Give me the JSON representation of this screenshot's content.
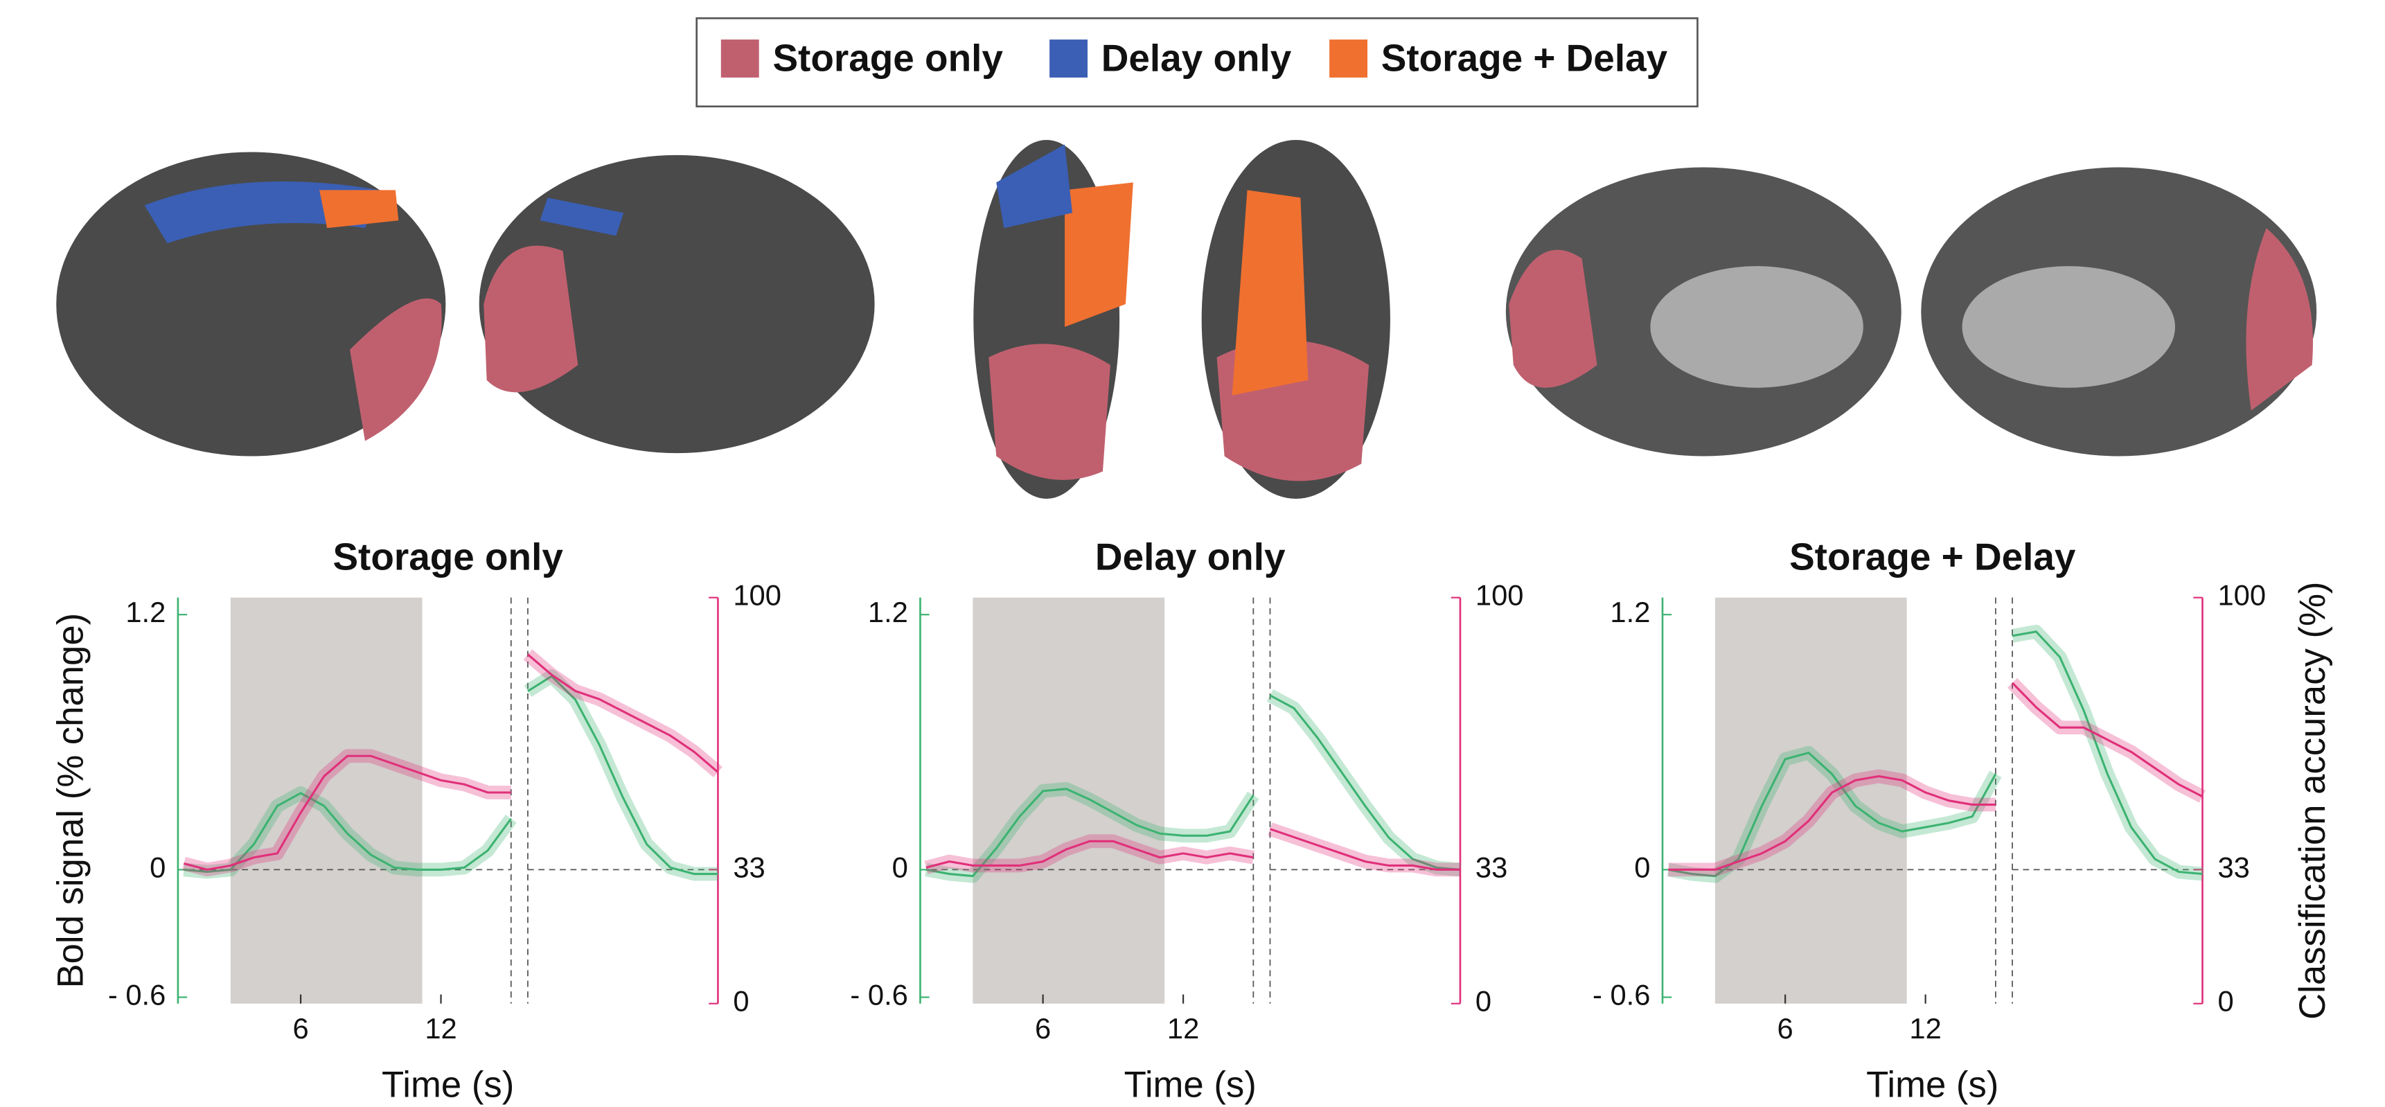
{
  "legend": {
    "entries": [
      {
        "label": "Storage only",
        "color": "#c0606f"
      },
      {
        "label": "Delay only",
        "color": "#3a5fb5"
      },
      {
        "label": "Storage + Delay",
        "color": "#f07030"
      }
    ]
  },
  "chart_data": [
    {
      "type": "line",
      "title": "Storage only",
      "xlabel": "Time (s)",
      "ylabel": "Bold signal (% change)",
      "x": [
        1,
        2,
        3,
        4,
        5,
        6,
        7,
        8,
        9,
        10,
        11,
        12,
        13,
        14,
        15
      ],
      "xlim": [
        0.75,
        15
      ],
      "xticks": [
        6,
        12
      ],
      "ylim": [
        -0.63,
        1.28
      ],
      "yticks": [
        {
          "value": -0.6,
          "label": "- 0.6"
        },
        0,
        1.2
      ],
      "y2lim": [
        0,
        100
      ],
      "y2ticks": [
        0,
        33,
        100
      ],
      "delay_period": [
        3,
        11.2
      ],
      "series": [
        {
          "color": "#3cb371",
          "values": [
            0,
            -0.01,
            0,
            0.12,
            0.3,
            0.36,
            0.3,
            0.17,
            0.07,
            0.01,
            0,
            0,
            0.01,
            0.09,
            0.24
          ]
        },
        {
          "color": "#e0307a",
          "axis": "y2",
          "values": [
            34.5,
            33,
            34,
            36,
            37,
            47,
            56,
            61,
            61,
            59,
            57,
            55,
            54,
            52,
            52
          ]
        }
      ],
      "late": {
        "x": [
          1,
          2,
          3,
          4,
          5,
          6,
          7,
          8,
          9
        ],
        "xlim": [
          1,
          9
        ],
        "series": [
          {
            "color": "#3cb371",
            "values": [
              0.84,
              0.91,
              0.8,
              0.59,
              0.34,
              0.12,
              0.01,
              -0.02,
              -0.02
            ]
          },
          {
            "color": "#e0307a",
            "axis": "y2",
            "values": [
              86,
              81,
              77,
              75,
              72,
              69,
              66,
              62,
              57
            ]
          }
        ]
      }
    },
    {
      "type": "line",
      "title": "Delay only",
      "xlabel": "Time (s)",
      "x": [
        1,
        2,
        3,
        4,
        5,
        6,
        7,
        8,
        9,
        10,
        11,
        12,
        13,
        14,
        15
      ],
      "xlim": [
        0.75,
        15
      ],
      "xticks": [
        6,
        12
      ],
      "ylim": [
        -0.63,
        1.28
      ],
      "yticks": [
        {
          "value": -0.6,
          "label": "- 0.6"
        },
        0,
        1.2
      ],
      "y2lim": [
        0,
        100
      ],
      "y2ticks": [
        0,
        33,
        100
      ],
      "delay_period": [
        3,
        11.2
      ],
      "series": [
        {
          "color": "#3cb371",
          "values": [
            0,
            -0.02,
            -0.03,
            0.1,
            0.25,
            0.37,
            0.38,
            0.33,
            0.27,
            0.21,
            0.17,
            0.16,
            0.16,
            0.18,
            0.35
          ]
        },
        {
          "color": "#e0307a",
          "axis": "y2",
          "values": [
            33.5,
            35,
            34,
            34,
            34,
            35,
            38,
            40,
            40,
            38,
            36,
            37,
            36,
            37,
            36
          ]
        }
      ],
      "late": {
        "x": [
          1,
          2,
          3,
          4,
          5,
          6,
          7,
          8,
          9
        ],
        "xlim": [
          1,
          9
        ],
        "series": [
          {
            "color": "#3cb371",
            "values": [
              0.82,
              0.76,
              0.62,
              0.46,
              0.3,
              0.15,
              0.05,
              0.01,
              0
            ]
          },
          {
            "color": "#e0307a",
            "axis": "y2",
            "values": [
              43,
              41,
              39,
              37,
              35,
              34,
              34,
              33,
              33
            ]
          }
        ]
      }
    },
    {
      "type": "line",
      "title": "Storage + Delay",
      "xlabel": "Time (s)",
      "y2label": "Classification accuracy (%)",
      "x": [
        1,
        2,
        3,
        4,
        5,
        6,
        7,
        8,
        9,
        10,
        11,
        12,
        13,
        14,
        15
      ],
      "xlim": [
        0.75,
        15
      ],
      "xticks": [
        6,
        12
      ],
      "ylim": [
        -0.63,
        1.28
      ],
      "yticks": [
        {
          "value": -0.6,
          "label": "- 0.6"
        },
        0,
        1.2
      ],
      "y2lim": [
        0,
        100
      ],
      "y2ticks": [
        0,
        33,
        100
      ],
      "delay_period": [
        3,
        11.2
      ],
      "series": [
        {
          "color": "#3cb371",
          "values": [
            0,
            -0.02,
            -0.03,
            0.05,
            0.3,
            0.52,
            0.55,
            0.45,
            0.3,
            0.22,
            0.18,
            0.2,
            0.22,
            0.25,
            0.45
          ]
        },
        {
          "color": "#e0307a",
          "axis": "y2",
          "values": [
            33,
            33,
            33,
            35,
            37,
            40,
            45,
            52,
            55,
            56,
            55,
            52,
            50,
            49,
            49
          ]
        }
      ],
      "late": {
        "x": [
          1,
          2,
          3,
          4,
          5,
          6,
          7,
          8,
          9
        ],
        "xlim": [
          1,
          9
        ],
        "series": [
          {
            "color": "#3cb371",
            "values": [
              1.1,
              1.12,
              1,
              0.75,
              0.45,
              0.2,
              0.05,
              -0.01,
              -0.02
            ]
          },
          {
            "color": "#e0307a",
            "axis": "y2",
            "values": [
              79,
              73,
              68,
              68,
              65,
              62,
              58,
              54,
              51
            ]
          }
        ]
      }
    }
  ]
}
